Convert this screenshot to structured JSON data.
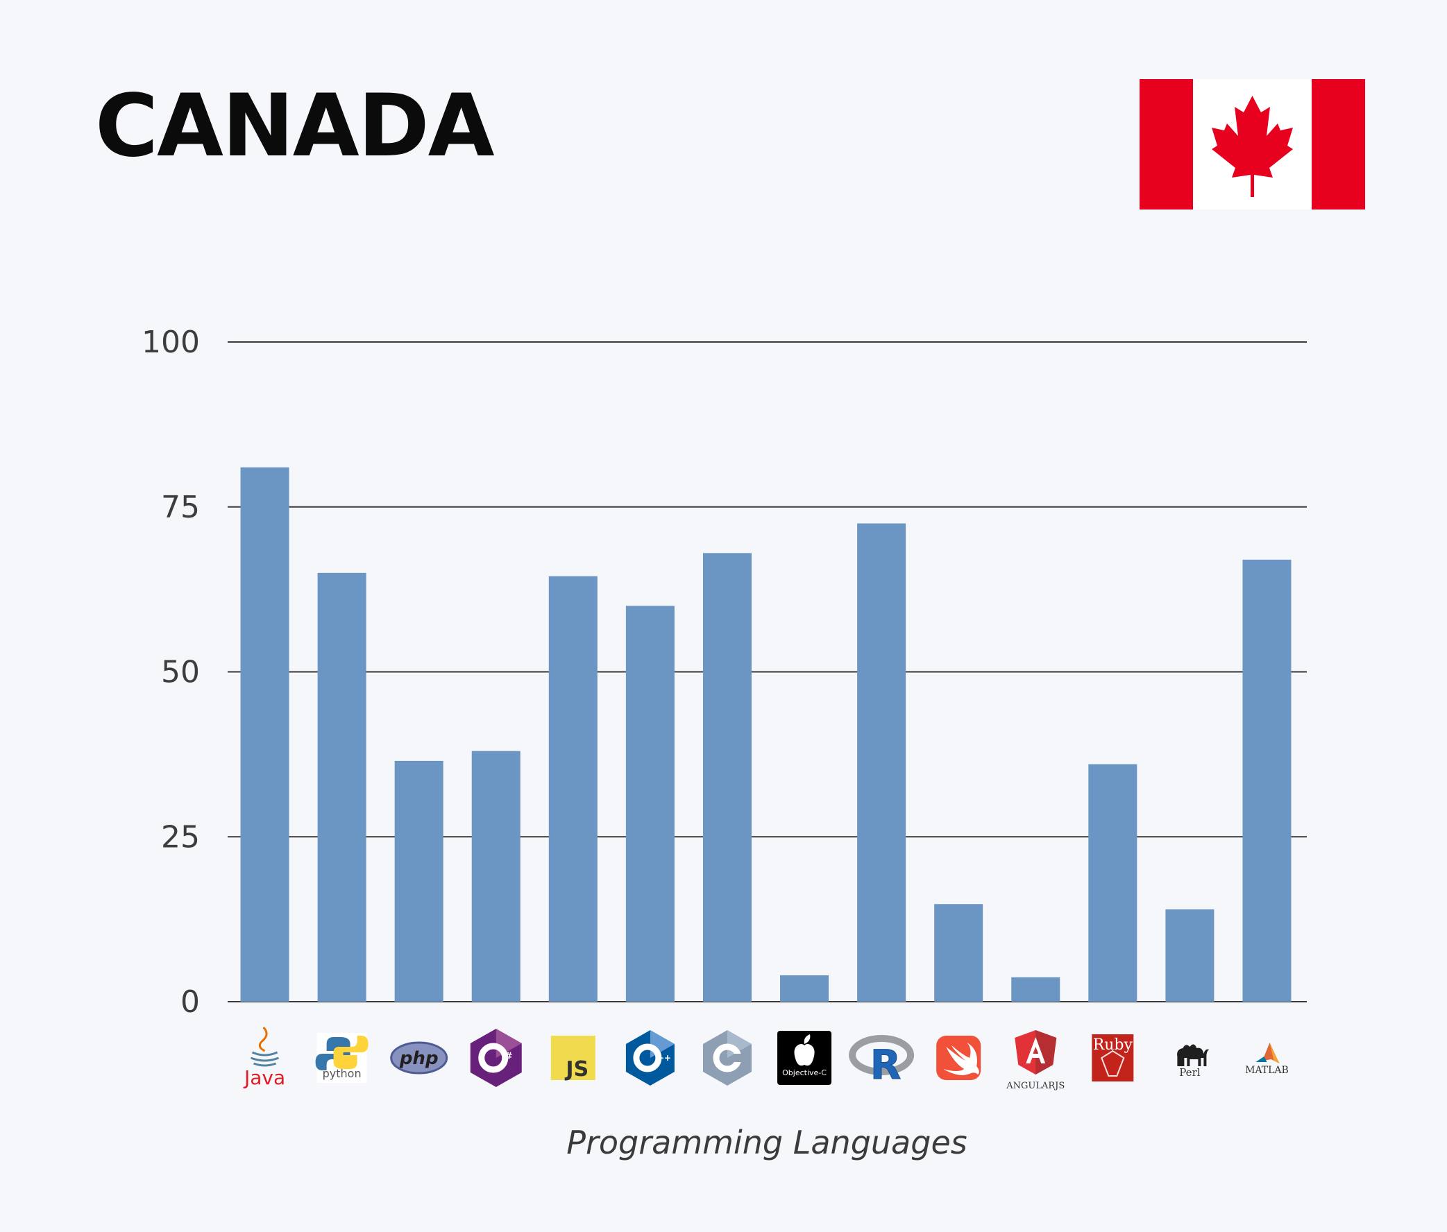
{
  "header": {
    "title": "CANADA",
    "flag_icon": "canada-flag-icon"
  },
  "chart_data": {
    "type": "bar",
    "title": "",
    "xlabel": "Programming Languages",
    "ylabel": "",
    "ylim": [
      0,
      100
    ],
    "yticks": [
      0,
      25,
      50,
      75,
      100
    ],
    "grid": true,
    "categories": [
      "Java",
      "Python",
      "PHP",
      "C#",
      "JavaScript",
      "C++",
      "C",
      "Objective-C",
      "R",
      "Swift",
      "AngularJS",
      "Ruby",
      "Perl",
      "MATLAB"
    ],
    "category_icon_text": [
      "Java",
      "python",
      "php",
      "C#",
      "JS",
      "C++",
      "C",
      "Objective-C",
      "R",
      "",
      "ANGULARJS",
      "Ruby",
      "Perl",
      "MATLAB"
    ],
    "values": [
      81,
      65,
      36.5,
      38,
      64.5,
      60,
      68,
      4,
      72.5,
      14.8,
      3.7,
      36,
      14,
      67
    ],
    "bar_color": "#6b96c3"
  }
}
